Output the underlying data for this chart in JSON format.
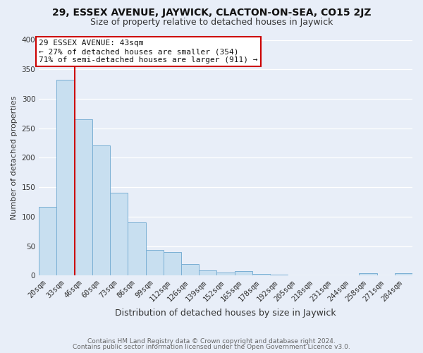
{
  "title": "29, ESSEX AVENUE, JAYWICK, CLACTON-ON-SEA, CO15 2JZ",
  "subtitle": "Size of property relative to detached houses in Jaywick",
  "xlabel": "Distribution of detached houses by size in Jaywick",
  "ylabel": "Number of detached properties",
  "bar_labels": [
    "20sqm",
    "33sqm",
    "46sqm",
    "60sqm",
    "73sqm",
    "86sqm",
    "99sqm",
    "112sqm",
    "126sqm",
    "139sqm",
    "152sqm",
    "165sqm",
    "178sqm",
    "192sqm",
    "205sqm",
    "218sqm",
    "231sqm",
    "244sqm",
    "258sqm",
    "271sqm",
    "284sqm"
  ],
  "bar_values": [
    117,
    332,
    265,
    221,
    141,
    90,
    44,
    40,
    20,
    9,
    5,
    7,
    3,
    2,
    0,
    0,
    0,
    0,
    4,
    0,
    4
  ],
  "bar_color": "#c8dff0",
  "bar_edge_color": "#7aafd4",
  "ylim": [
    0,
    400
  ],
  "yticks": [
    0,
    50,
    100,
    150,
    200,
    250,
    300,
    350,
    400
  ],
  "red_line_x": 1.5,
  "annotation_title": "29 ESSEX AVENUE: 43sqm",
  "annotation_line1": "← 27% of detached houses are smaller (354)",
  "annotation_line2": "71% of semi-detached houses are larger (911) →",
  "footer_line1": "Contains HM Land Registry data © Crown copyright and database right 2024.",
  "footer_line2": "Contains public sector information licensed under the Open Government Licence v3.0.",
  "bg_color": "#e8eef8",
  "grid_color": "#ffffff",
  "red_line_color": "#cc0000",
  "annotation_box_color": "#ffffff",
  "annotation_box_edge": "#cc0000",
  "title_fontsize": 10,
  "subtitle_fontsize": 9,
  "ylabel_fontsize": 8,
  "xlabel_fontsize": 9,
  "tick_fontsize": 7.5,
  "footer_fontsize": 6.5,
  "annotation_fontsize": 8
}
